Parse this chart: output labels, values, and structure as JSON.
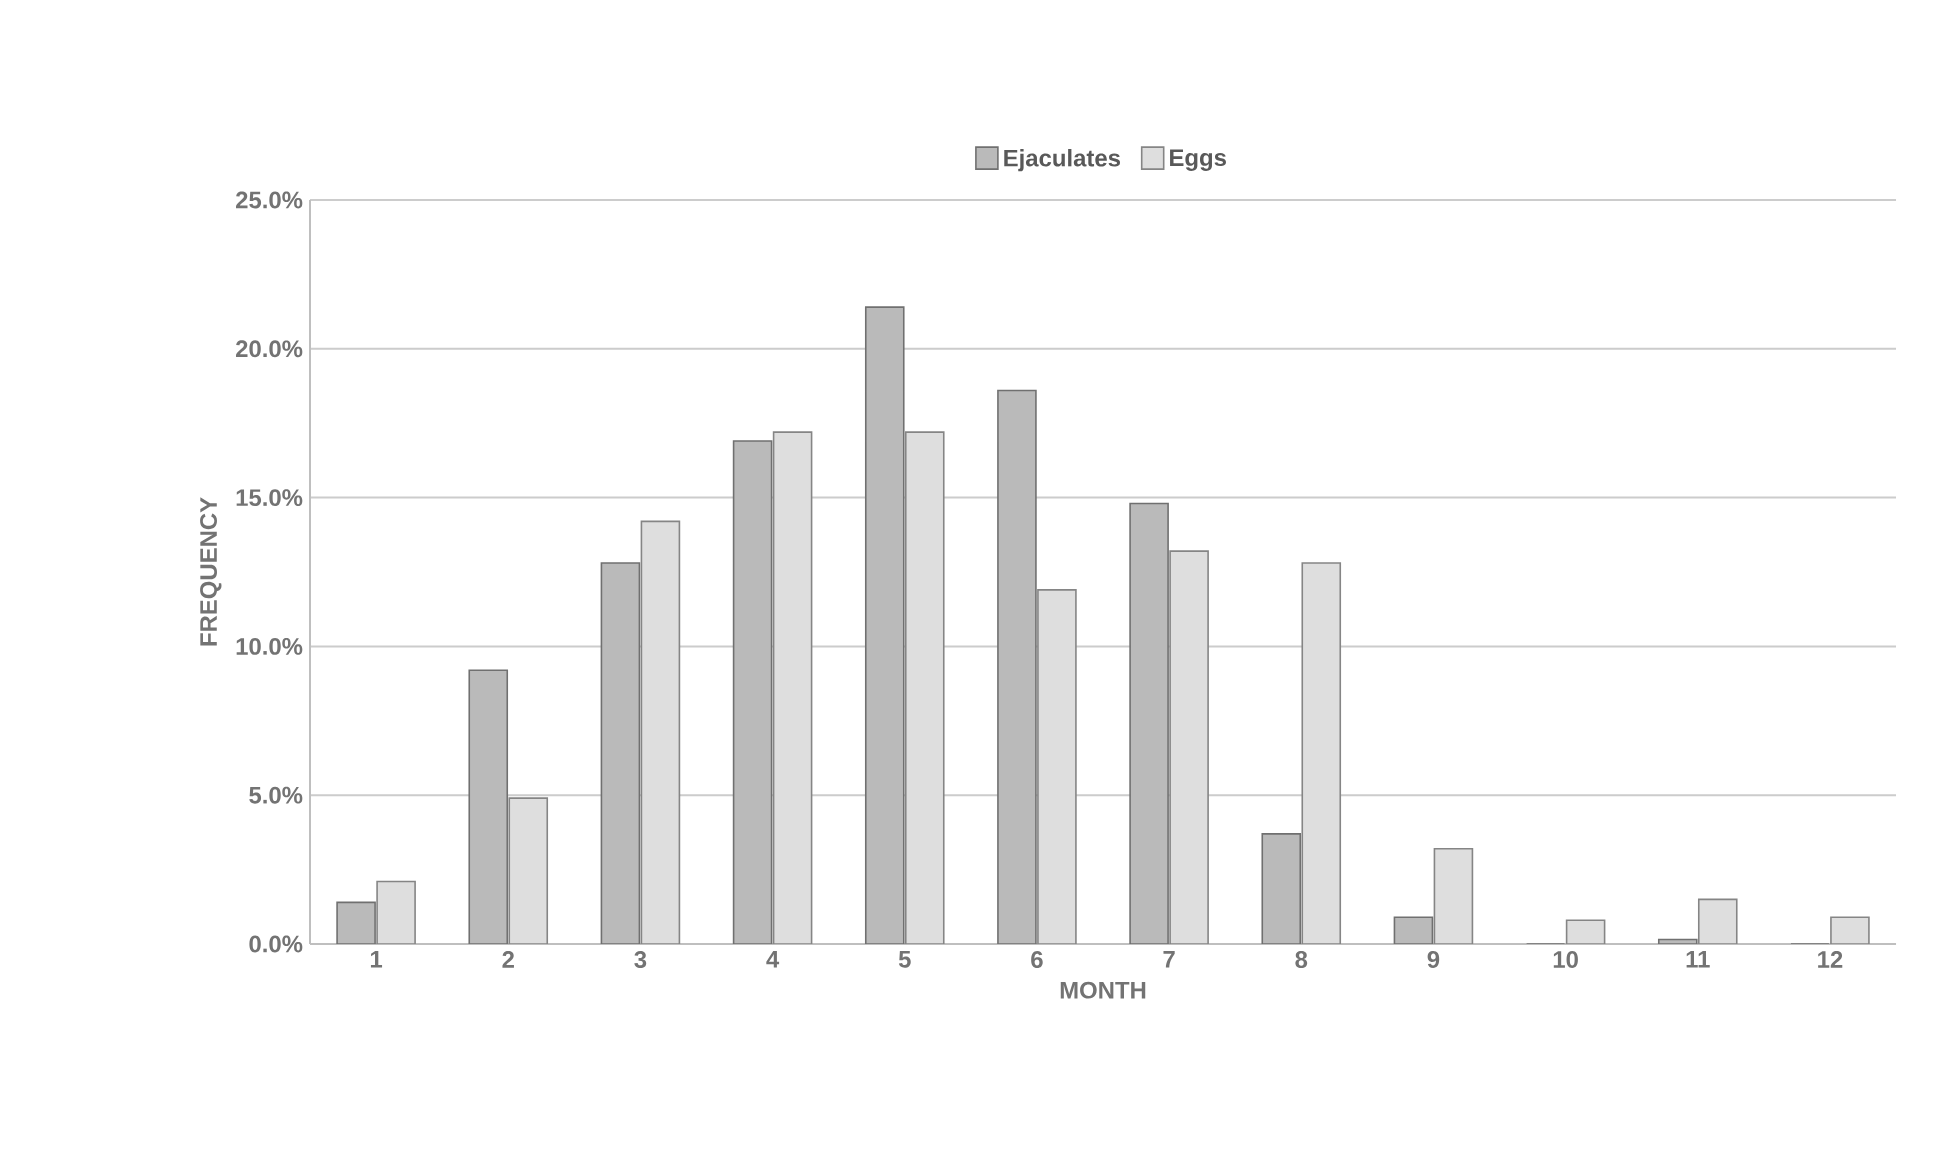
{
  "chart_data": {
    "type": "bar",
    "xlabel": "MONTH",
    "ylabel": "FREQUENCY",
    "categories": [
      "1",
      "2",
      "3",
      "4",
      "5",
      "6",
      "7",
      "8",
      "9",
      "10",
      "11",
      "12"
    ],
    "series": [
      {
        "name": "Ejaculates",
        "color": "#bababa",
        "values": [
          1.4,
          9.2,
          12.8,
          16.9,
          21.4,
          18.6,
          14.8,
          3.7,
          0.9,
          0,
          0.15,
          0
        ]
      },
      {
        "name": "Eggs",
        "color": "#dedede",
        "values": [
          2.1,
          4.9,
          14.2,
          17.2,
          17.2,
          11.9,
          13.2,
          12.8,
          3.2,
          0.8,
          1.5,
          0.9
        ]
      }
    ],
    "ylim": [
      0,
      25
    ],
    "yticks": [
      {
        "value": 0,
        "label": "0.0%"
      },
      {
        "value": 5,
        "label": "5.0%"
      },
      {
        "value": 10,
        "label": "10.0%"
      },
      {
        "value": 15,
        "label": "15.0%"
      },
      {
        "value": 20,
        "label": "20.0%"
      },
      {
        "value": 25,
        "label": "25.0%"
      }
    ],
    "grid": "y",
    "legend": "top"
  }
}
